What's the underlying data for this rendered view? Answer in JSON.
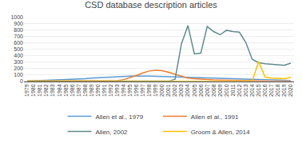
{
  "chart_data": {
    "type": "line",
    "title": "CSD database description articles",
    "x": [
      1979,
      1980,
      1981,
      1982,
      1983,
      1984,
      1985,
      1986,
      1987,
      1988,
      1989,
      1990,
      1991,
      1992,
      1993,
      1994,
      1995,
      1996,
      1997,
      1998,
      1999,
      2000,
      2001,
      2002,
      2003,
      2004,
      2005,
      2006,
      2007,
      2008,
      2009,
      2010,
      2011,
      2012,
      2013,
      2014,
      2015,
      2016,
      2017,
      2018,
      2019,
      2020
    ],
    "xlim": [
      1978.5,
      2020.5
    ],
    "xticks": [
      1979,
      1980,
      1981,
      1982,
      1983,
      1984,
      1985,
      1986,
      1987,
      1988,
      1989,
      1990,
      1991,
      1992,
      1993,
      1994,
      1995,
      1996,
      1997,
      1998,
      1999,
      2000,
      2001,
      2002,
      2003,
      2004,
      2005,
      2006,
      2007,
      2008,
      2009,
      2010,
      2011,
      2012,
      2013,
      2014,
      2015,
      2016,
      2017,
      2018,
      2019,
      2020
    ],
    "ylim": [
      0,
      1000
    ],
    "yticks": [
      0,
      100,
      200,
      300,
      400,
      500,
      600,
      700,
      800,
      900,
      1000
    ],
    "grid": true,
    "legend": "bottom",
    "series": [
      {
        "name": "Allen et al., 1979",
        "color": "#5B9BD5",
        "values": [
          2,
          5,
          8,
          12,
          15,
          18,
          22,
          28,
          32,
          38,
          48,
          55,
          62,
          68,
          72,
          75,
          80,
          82,
          85,
          80,
          78,
          75,
          72,
          68,
          62,
          58,
          55,
          50,
          46,
          42,
          40,
          37,
          34,
          32,
          30,
          27,
          24,
          20,
          17,
          14,
          12,
          10
        ]
      },
      {
        "name": "Allen et al., 1991",
        "color": "#ED7D31",
        "values": [
          0,
          0,
          0,
          0,
          0,
          0,
          0,
          0,
          0,
          0,
          0,
          0,
          0,
          2,
          8,
          25,
          55,
          90,
          130,
          160,
          175,
          165,
          140,
          110,
          75,
          50,
          38,
          30,
          24,
          20,
          17,
          14,
          12,
          10,
          8,
          6,
          5,
          4,
          3,
          2,
          2,
          1
        ]
      },
      {
        "name": "Allen, 2002",
        "color": "#5E8B8E",
        "values": [
          0,
          0,
          0,
          0,
          0,
          0,
          0,
          0,
          0,
          0,
          0,
          0,
          0,
          0,
          0,
          0,
          0,
          0,
          0,
          0,
          0,
          0,
          0,
          30,
          590,
          875,
          430,
          440,
          860,
          780,
          730,
          800,
          780,
          770,
          610,
          345,
          290,
          275,
          265,
          255,
          250,
          285
        ]
      },
      {
        "name": "Groom & Allen, 2014",
        "color": "#FFC000",
        "values": [
          0,
          0,
          0,
          0,
          0,
          0,
          0,
          0,
          0,
          0,
          0,
          0,
          0,
          0,
          0,
          0,
          0,
          0,
          0,
          0,
          0,
          0,
          0,
          0,
          0,
          0,
          0,
          0,
          0,
          0,
          0,
          0,
          0,
          0,
          0,
          0,
          310,
          65,
          50,
          40,
          38,
          60
        ]
      }
    ]
  }
}
